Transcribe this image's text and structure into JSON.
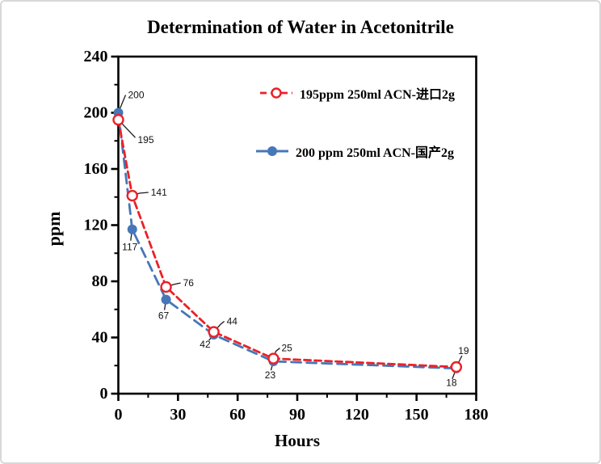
{
  "page": {
    "background": "#ffffff",
    "border_color": "#d8d8d8"
  },
  "chart_data": {
    "type": "line",
    "title": "Determination of Water in Acetonitrile",
    "xlabel": "Hours",
    "ylabel": "ppm",
    "xlim": [
      0,
      180
    ],
    "ylim": [
      0,
      240
    ],
    "x_major_ticks": [
      0,
      30,
      60,
      90,
      120,
      150,
      180
    ],
    "x_minor_step": 15,
    "y_major_ticks": [
      0,
      40,
      80,
      120,
      160,
      200,
      240
    ],
    "y_minor_step": 20,
    "grid": false,
    "legend_position": "inside-top-center",
    "axis_color": "#000000",
    "series": [
      {
        "name": "195ppm  250ml ACN-进口2g",
        "color": "#eb2128",
        "marker": "open-circle",
        "line": "dashed",
        "dash": "8,5",
        "x": [
          0,
          7,
          24,
          48,
          78,
          170
        ],
        "values": [
          195,
          141,
          76,
          44,
          25,
          19
        ]
      },
      {
        "name": "200 ppm 250ml ACN-国产2g",
        "color": "#4677b8",
        "marker": "filled-circle",
        "line": "dashed",
        "dash": "12,7",
        "x": [
          0,
          7,
          24,
          48,
          78,
          170
        ],
        "values": [
          200,
          117,
          67,
          42,
          23,
          18
        ]
      }
    ],
    "annotations": [
      {
        "series": 0,
        "point": 0,
        "text": "195",
        "leader": [
          [
            21,
            22
          ]
        ],
        "label": [
          24,
          25
        ],
        "anchor": "start"
      },
      {
        "series": 0,
        "point": 1,
        "text": "141",
        "leader": [
          [
            9,
            -3
          ],
          [
            20,
            -4
          ]
        ],
        "label": [
          23,
          -4
        ],
        "anchor": "start"
      },
      {
        "series": 0,
        "point": 2,
        "text": "76",
        "leader": [
          [
            9,
            -3
          ],
          [
            18,
            -5
          ]
        ],
        "label": [
          21,
          -5
        ],
        "anchor": "start"
      },
      {
        "series": 0,
        "point": 3,
        "text": "44",
        "leader": [
          [
            9,
            -10
          ],
          [
            13,
            -13
          ]
        ],
        "label": [
          16,
          -13
        ],
        "anchor": "start"
      },
      {
        "series": 0,
        "point": 4,
        "text": "25",
        "leader": [
          [
            3,
            -9
          ],
          [
            8,
            -13
          ]
        ],
        "label": [
          10,
          -13
        ],
        "anchor": "start"
      },
      {
        "series": 0,
        "point": 5,
        "text": "19",
        "leader": [
          [
            7,
            -14
          ]
        ],
        "label": [
          9,
          -20
        ],
        "anchor": "middle"
      },
      {
        "series": 1,
        "point": 0,
        "text": "200",
        "leader": [
          [
            4,
            -10
          ],
          [
            9,
            -22
          ]
        ],
        "label": [
          12,
          -22
        ],
        "anchor": "start"
      },
      {
        "series": 1,
        "point": 1,
        "text": "117",
        "leader": [
          [
            -2,
            14
          ]
        ],
        "label": [
          -3,
          22
        ],
        "anchor": "middle"
      },
      {
        "series": 1,
        "point": 2,
        "text": "67",
        "leader": [
          [
            -2,
            13
          ]
        ],
        "label": [
          -3,
          20
        ],
        "anchor": "middle"
      },
      {
        "series": 1,
        "point": 3,
        "text": "42",
        "leader": [
          [
            -6,
            7
          ]
        ],
        "label": [
          -4,
          12
        ],
        "anchor": "end"
      },
      {
        "series": 1,
        "point": 4,
        "text": "23",
        "leader": [
          [
            -3,
            11
          ]
        ],
        "label": [
          -4,
          17
        ],
        "anchor": "middle"
      },
      {
        "series": 1,
        "point": 5,
        "text": "18",
        "leader": [
          [
            -5,
            13
          ]
        ],
        "label": [
          -6,
          18
        ],
        "anchor": "middle"
      }
    ]
  }
}
